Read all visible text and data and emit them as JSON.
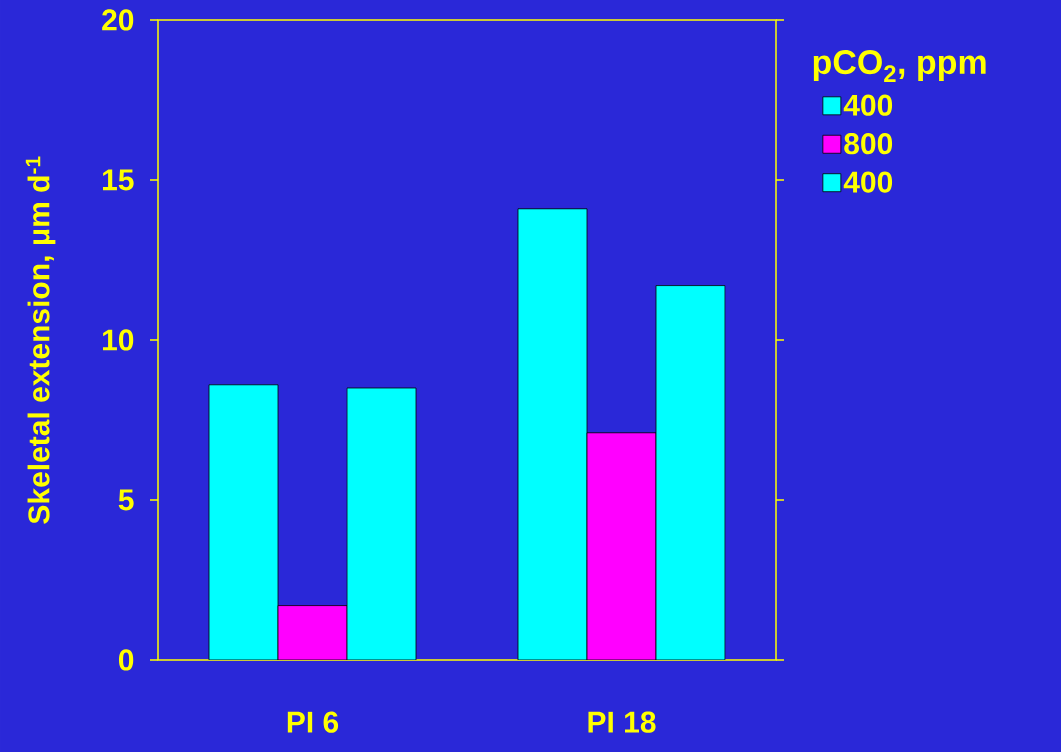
{
  "chart_data": {
    "type": "bar",
    "ylabel": "Skeletal extension, μm d$^{-1}$",
    "legend_title": "pCO$_{2}$, ppm",
    "categories": [
      "PI 6",
      "PI 18"
    ],
    "series": [
      {
        "name": "400",
        "color": "#00ffff",
        "values": [
          8.6,
          14.1
        ]
      },
      {
        "name": "800",
        "color": "#ff00ff",
        "values": [
          1.7,
          7.1
        ]
      },
      {
        "name": "400",
        "color": "#00ffff",
        "values": [
          8.5,
          11.7
        ]
      }
    ],
    "ylim": [
      0,
      20
    ],
    "yticks": [
      0,
      5,
      10,
      15,
      20
    ],
    "legend": "top right",
    "grid": false
  }
}
